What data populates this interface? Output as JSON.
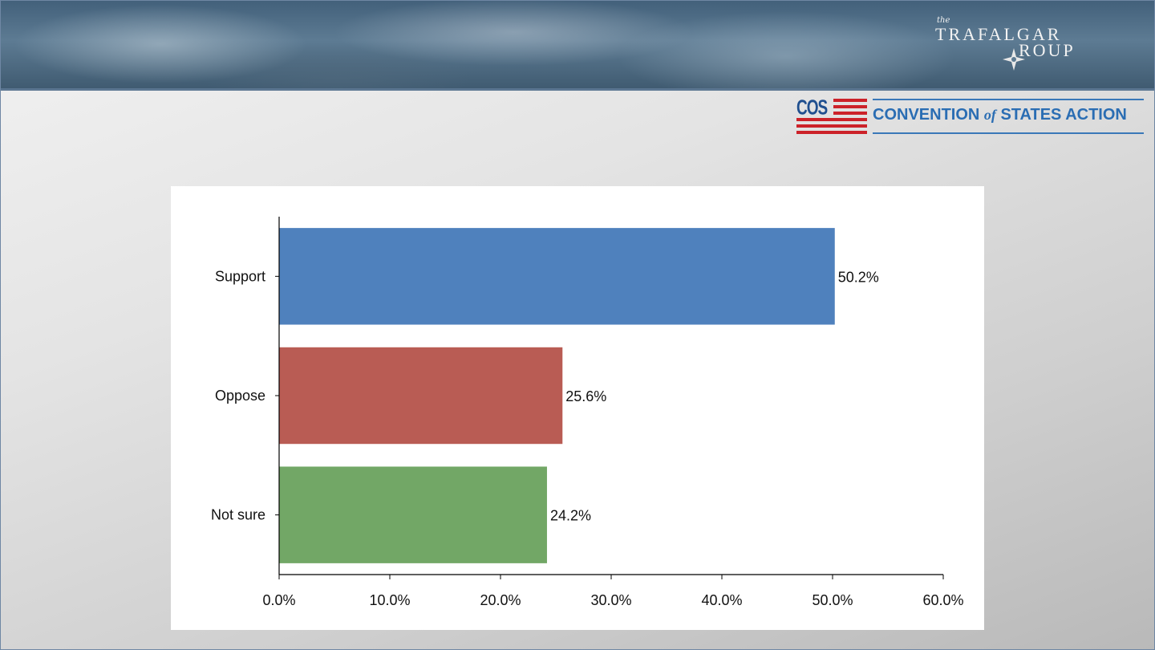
{
  "header": {
    "brand_the": "the",
    "brand_line1": "TRAFALGAR",
    "brand_line2": "ROUP",
    "sponsor_abbr": "COS",
    "sponsor_name_part1": "CONVENTION ",
    "sponsor_name_of": "of",
    "sponsor_name_part2": " STATES ACTION"
  },
  "colors": {
    "support": "#4f81bd",
    "oppose": "#c0504d",
    "not_sure": "#9bbb59",
    "cos_red": "#cc2229",
    "cos_blue": "#1f4f8f"
  },
  "chart_data": {
    "type": "bar",
    "orientation": "horizontal",
    "categories": [
      "Support",
      "Oppose",
      "Not sure"
    ],
    "values": [
      50.2,
      25.6,
      24.2
    ],
    "value_labels": [
      "50.2%",
      "25.6%",
      "24.2%"
    ],
    "bar_colors": [
      "#4f81bd",
      "#b95c54",
      "#72a766"
    ],
    "xlim": [
      0,
      60
    ],
    "x_ticks": [
      0,
      10,
      20,
      30,
      40,
      50,
      60
    ],
    "x_tick_labels": [
      "0.0%",
      "10.0%",
      "20.0%",
      "30.0%",
      "40.0%",
      "50.0%",
      "60.0%"
    ],
    "title": "",
    "xlabel": "",
    "ylabel": "",
    "grid": false,
    "legend": "none"
  }
}
